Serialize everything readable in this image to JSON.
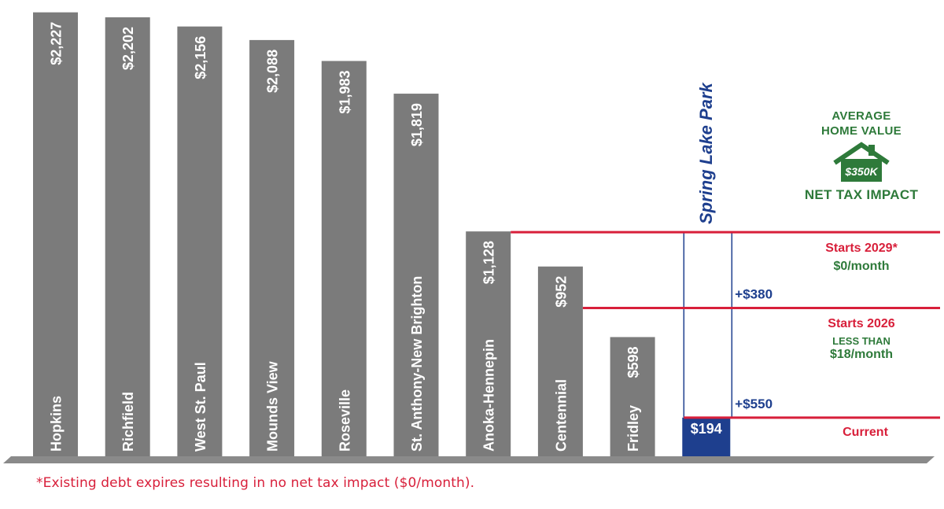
{
  "chart_data": {
    "type": "bar",
    "categories": [
      "Hopkins",
      "Richfield",
      "West St. Paul",
      "Mounds View",
      "Roseville",
      "St. Anthony-New Brighton",
      "Anoka-Hennepin",
      "Centennial",
      "Fridley",
      "Spring Lake Park"
    ],
    "values": [
      2227,
      2202,
      2156,
      2088,
      1983,
      1819,
      1128,
      952,
      598,
      194
    ],
    "value_labels": [
      "$2,227",
      "$2,202",
      "$2,156",
      "$2,088",
      "$1,983",
      "$1,819",
      "$1,128",
      "$952",
      "$598",
      "$194"
    ],
    "highlight": {
      "category": "Spring Lake Park",
      "current": 194,
      "current_label": "$194",
      "increments": [
        {
          "value": 550,
          "label": "+$550"
        },
        {
          "value": 380,
          "label": "+$380"
        }
      ]
    },
    "colors": {
      "bar": "#7b7b7b",
      "highlight": "#1e3f8e",
      "reference_line": "#d81f3a",
      "axis": "#8a8a8a",
      "green": "#2e7a3a"
    }
  },
  "info_box": {
    "line1": "AVERAGE",
    "line2": "HOME VALUE",
    "home_value": "$350K",
    "subtitle": "NET TAX IMPACT"
  },
  "notes": {
    "starts_2029": "Starts 2029*",
    "starts_2029_amount": "$0/month",
    "starts_2026": "Starts 2026",
    "starts_2026_qualifier": "LESS THAN",
    "starts_2026_amount": "$18/month",
    "current": "Current"
  },
  "footnote": "*Existing debt expires resulting in no net tax impact ($0/month)."
}
